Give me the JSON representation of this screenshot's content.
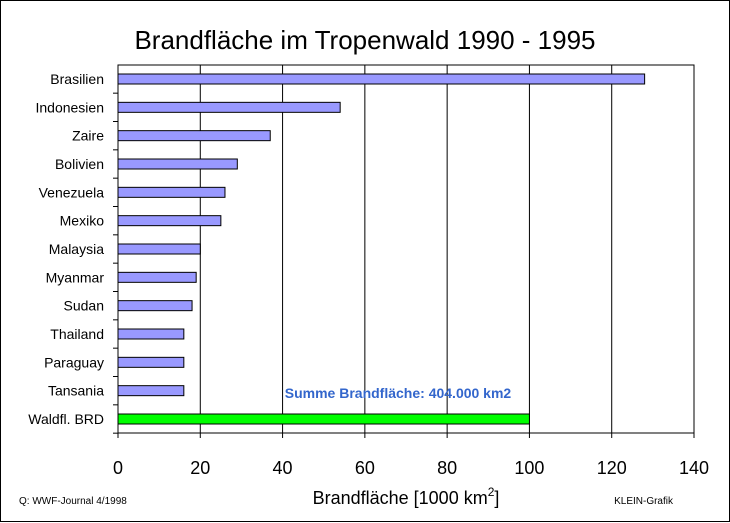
{
  "chart_data": {
    "type": "bar",
    "orientation": "horizontal",
    "title": "Brandfläche im Tropenwald 1990 - 1995",
    "xlabel": "Brandfläche [1000 km",
    "xlabel_sup": "2",
    "xlabel_suffix": "]",
    "ylabel": "",
    "xlim": [
      0,
      140
    ],
    "xticks": [
      0,
      20,
      40,
      60,
      80,
      100,
      120,
      140
    ],
    "grid": "vertical",
    "categories": [
      "Brasilien",
      "Indonesien",
      "Zaire",
      "Bolivien",
      "Venezuela",
      "Mexiko",
      "Malaysia",
      "Myanmar",
      "Sudan",
      "Thailand",
      "Paraguay",
      "Tansania",
      "Waldfl. BRD"
    ],
    "values": [
      128,
      54,
      37,
      29,
      26,
      25,
      20,
      19,
      18,
      16,
      16,
      16,
      100
    ],
    "colors": [
      "#9999ff",
      "#9999ff",
      "#9999ff",
      "#9999ff",
      "#9999ff",
      "#9999ff",
      "#9999ff",
      "#9999ff",
      "#9999ff",
      "#9999ff",
      "#9999ff",
      "#9999ff",
      "#00ff00"
    ],
    "annotation": "Summe Brandfläche: 404.000 km2",
    "annotation_color": "#3366cc",
    "source_note": "Q: WWF-Journal 4/1998",
    "credit": "KLEIN-Grafik"
  }
}
